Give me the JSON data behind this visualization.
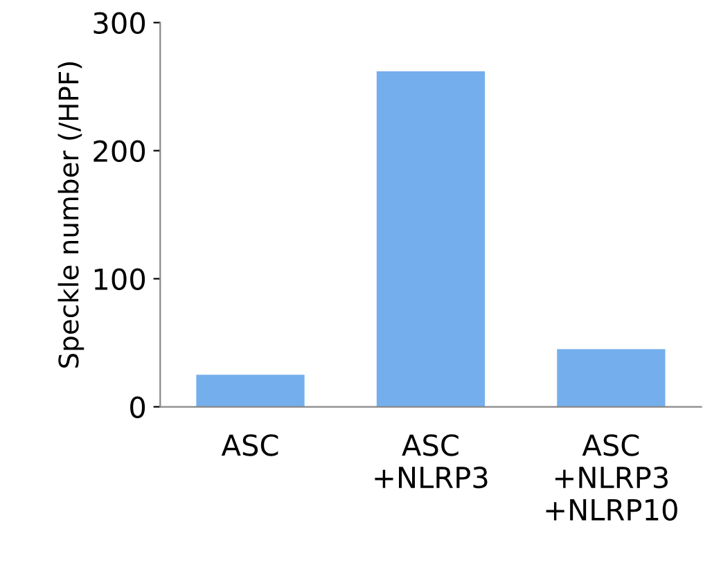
{
  "chart_data": {
    "type": "bar",
    "ylabel": "Speckle number (/HPF)",
    "categories": [
      "ASC",
      "ASC\n+NLRP3",
      "ASC\n+NLRP3\n+NLRP10"
    ],
    "values": [
      25,
      262,
      45
    ],
    "color": "#74aeec",
    "ylim": [
      0,
      300
    ],
    "yticks": [
      0,
      100,
      200,
      300
    ],
    "grid": false
  }
}
